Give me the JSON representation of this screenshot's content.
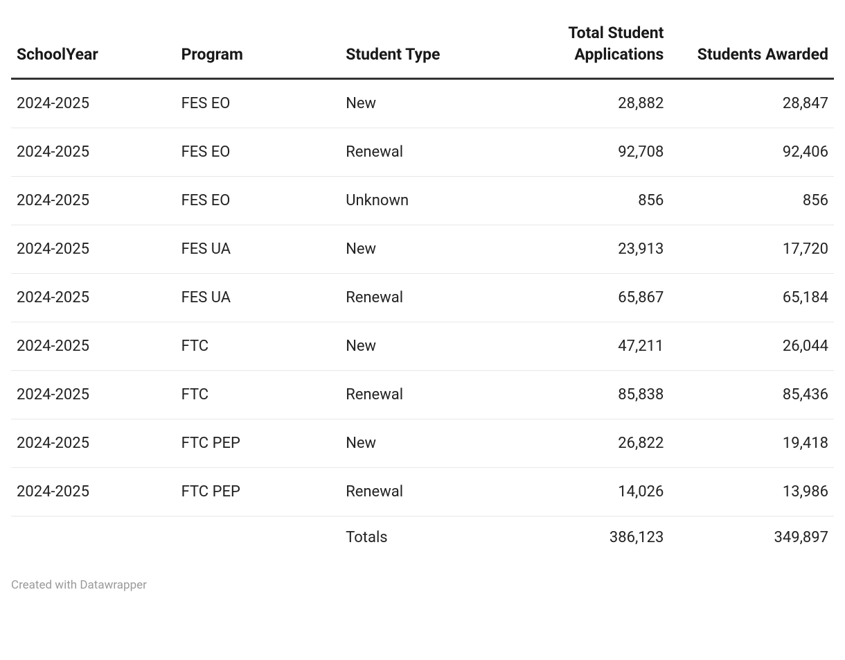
{
  "table": {
    "columns": [
      {
        "key": "school_year",
        "label": "SchoolYear",
        "align": "left",
        "width_pct": 20
      },
      {
        "key": "program",
        "label": "Program",
        "align": "left",
        "width_pct": 20
      },
      {
        "key": "student_type",
        "label": "Student Type",
        "align": "left",
        "width_pct": 18
      },
      {
        "key": "total_applications",
        "label": "Total Student Applications",
        "align": "right",
        "width_pct": 22
      },
      {
        "key": "students_awarded",
        "label": "Students Awarded",
        "align": "right",
        "width_pct": 20
      }
    ],
    "rows": [
      {
        "school_year": "2024-2025",
        "program": "FES EO",
        "student_type": "New",
        "total_applications": "28,882",
        "students_awarded": "28,847"
      },
      {
        "school_year": "2024-2025",
        "program": "FES EO",
        "student_type": "Renewal",
        "total_applications": "92,708",
        "students_awarded": "92,406"
      },
      {
        "school_year": "2024-2025",
        "program": "FES EO",
        "student_type": "Unknown",
        "total_applications": "856",
        "students_awarded": "856"
      },
      {
        "school_year": "2024-2025",
        "program": "FES UA",
        "student_type": "New",
        "total_applications": "23,913",
        "students_awarded": "17,720"
      },
      {
        "school_year": "2024-2025",
        "program": "FES UA",
        "student_type": "Renewal",
        "total_applications": "65,867",
        "students_awarded": "65,184"
      },
      {
        "school_year": "2024-2025",
        "program": "FTC",
        "student_type": "New",
        "total_applications": "47,211",
        "students_awarded": "26,044"
      },
      {
        "school_year": "2024-2025",
        "program": "FTC",
        "student_type": "Renewal",
        "total_applications": "85,838",
        "students_awarded": "85,436"
      },
      {
        "school_year": "2024-2025",
        "program": "FTC PEP",
        "student_type": "New",
        "total_applications": "26,822",
        "students_awarded": "19,418"
      },
      {
        "school_year": "2024-2025",
        "program": "FTC PEP",
        "student_type": "Renewal",
        "total_applications": "14,026",
        "students_awarded": "13,986"
      }
    ],
    "totals": {
      "label": "Totals",
      "total_applications": "386,123",
      "students_awarded": "349,897"
    },
    "style": {
      "header_font_size": 23,
      "header_font_weight": 700,
      "header_color": "#181818",
      "header_border": "#333333",
      "header_border_width": 3,
      "body_font_size": 22,
      "body_color": "#222222",
      "row_border": "#e8e8e8",
      "background": "#ffffff"
    }
  },
  "footer": {
    "credit": "Created with Datawrapper",
    "font_size": 17,
    "color": "#9a9a9a"
  }
}
